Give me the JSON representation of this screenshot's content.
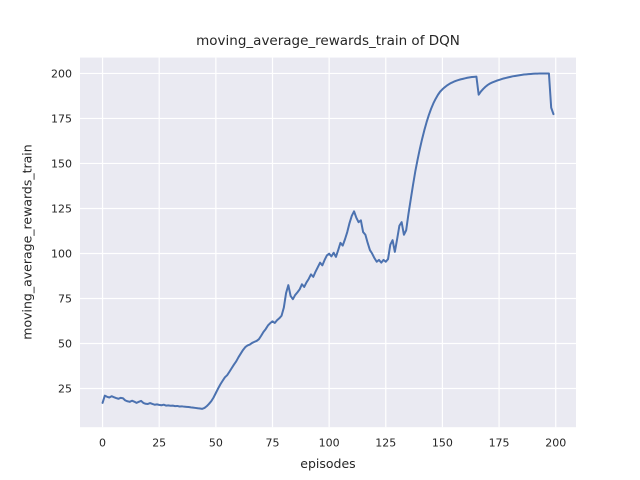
{
  "style": {
    "figure_bg": "#ffffff",
    "axes_bg": "#eaeaf2",
    "grid_color": "#ffffff",
    "text_color": "#262626",
    "accent": "#4c72b0"
  },
  "chart_data": {
    "type": "line",
    "title": "moving_average_rewards_train of DQN",
    "xlabel": "episodes",
    "ylabel": "moving_average_rewards_train",
    "x_ticks": [
      0,
      25,
      50,
      75,
      100,
      125,
      150,
      175,
      200
    ],
    "y_ticks": [
      25,
      50,
      75,
      100,
      125,
      150,
      175,
      200
    ],
    "xlim": [
      -9.95,
      208.95
    ],
    "ylim": [
      3.5,
      208.8
    ],
    "grid": true,
    "legend_position": "none",
    "series": [
      {
        "name": "moving_average_rewards_train",
        "color": "#4c72b0",
        "points": [
          [
            0,
            17
          ],
          [
            1,
            21
          ],
          [
            2,
            20.4
          ],
          [
            3,
            20
          ],
          [
            4,
            20.7
          ],
          [
            5,
            20.2
          ],
          [
            6,
            19.7
          ],
          [
            7,
            19.3
          ],
          [
            8,
            19.8
          ],
          [
            9,
            19.6
          ],
          [
            10,
            18.4
          ],
          [
            11,
            17.9
          ],
          [
            12,
            17.6
          ],
          [
            13,
            18.2
          ],
          [
            14,
            17.7
          ],
          [
            15,
            17
          ],
          [
            16,
            17.6
          ],
          [
            17,
            18.1
          ],
          [
            18,
            17
          ],
          [
            19,
            16.5
          ],
          [
            20,
            16.4
          ],
          [
            21,
            16.9
          ],
          [
            22,
            16.4
          ],
          [
            23,
            16
          ],
          [
            24,
            16.2
          ],
          [
            25,
            15.9
          ],
          [
            26,
            15.7
          ],
          [
            27,
            16
          ],
          [
            28,
            15.5
          ],
          [
            29,
            15.6
          ],
          [
            30,
            15.4
          ],
          [
            31,
            15.5
          ],
          [
            32,
            15.2
          ],
          [
            33,
            15.3
          ],
          [
            34,
            15
          ],
          [
            35,
            15.1
          ],
          [
            36,
            14.9
          ],
          [
            37,
            14.8
          ],
          [
            38,
            14.7
          ],
          [
            39,
            14.5
          ],
          [
            40,
            14.4
          ],
          [
            41,
            14.2
          ],
          [
            42,
            14
          ],
          [
            43,
            13.9
          ],
          [
            44,
            13.7
          ],
          [
            45,
            14.2
          ],
          [
            46,
            15.2
          ],
          [
            47,
            16.5
          ],
          [
            48,
            18
          ],
          [
            49,
            20
          ],
          [
            50,
            22.5
          ],
          [
            51,
            25
          ],
          [
            52,
            27.3
          ],
          [
            53,
            29.3
          ],
          [
            54,
            31.2
          ],
          [
            55,
            32.4
          ],
          [
            56,
            34.3
          ],
          [
            57,
            36.3
          ],
          [
            58,
            38.3
          ],
          [
            59,
            40.1
          ],
          [
            60,
            42.4
          ],
          [
            61,
            44.4
          ],
          [
            62,
            46.4
          ],
          [
            63,
            48
          ],
          [
            64,
            48.9
          ],
          [
            65,
            49.4
          ],
          [
            66,
            50.3
          ],
          [
            67,
            50.9
          ],
          [
            68,
            51.4
          ],
          [
            69,
            52.4
          ],
          [
            70,
            54.3
          ],
          [
            71,
            56.4
          ],
          [
            72,
            58
          ],
          [
            73,
            60
          ],
          [
            74,
            61.3
          ],
          [
            75,
            62.3
          ],
          [
            76,
            61.4
          ],
          [
            77,
            62.9
          ],
          [
            78,
            64
          ],
          [
            79,
            65.4
          ],
          [
            80,
            69.9
          ],
          [
            81,
            78
          ],
          [
            82,
            82.4
          ],
          [
            83,
            76.4
          ],
          [
            84,
            74.6
          ],
          [
            85,
            76.9
          ],
          [
            86,
            78.4
          ],
          [
            87,
            80.1
          ],
          [
            88,
            82.9
          ],
          [
            89,
            81.4
          ],
          [
            90,
            83.9
          ],
          [
            91,
            85.9
          ],
          [
            92,
            88.4
          ],
          [
            93,
            87
          ],
          [
            94,
            89.9
          ],
          [
            95,
            92.4
          ],
          [
            96,
            94.9
          ],
          [
            97,
            93.4
          ],
          [
            98,
            96.4
          ],
          [
            99,
            98.9
          ],
          [
            100,
            99.9
          ],
          [
            101,
            98.4
          ],
          [
            102,
            100.4
          ],
          [
            103,
            98.1
          ],
          [
            104,
            101.9
          ],
          [
            105,
            105.9
          ],
          [
            106,
            104.4
          ],
          [
            107,
            107.9
          ],
          [
            108,
            111.9
          ],
          [
            109,
            116.9
          ],
          [
            110,
            120.9
          ],
          [
            111,
            123.4
          ],
          [
            112,
            119.9
          ],
          [
            113,
            117.4
          ],
          [
            114,
            118.4
          ],
          [
            115,
            111.9
          ],
          [
            116,
            110.4
          ],
          [
            117,
            105.9
          ],
          [
            118,
            101.9
          ],
          [
            119,
            99.9
          ],
          [
            120,
            97.4
          ],
          [
            121,
            95.4
          ],
          [
            122,
            96.4
          ],
          [
            123,
            94.9
          ],
          [
            124,
            96.4
          ],
          [
            125,
            95.4
          ],
          [
            126,
            96.9
          ],
          [
            127,
            104.9
          ],
          [
            128,
            107.4
          ],
          [
            129,
            100.9
          ],
          [
            130,
            107.9
          ],
          [
            131,
            115.4
          ],
          [
            132,
            117.4
          ],
          [
            133,
            110.4
          ],
          [
            134,
            112.9
          ],
          [
            135,
            121.9
          ],
          [
            136,
            129.9
          ],
          [
            137,
            137.9
          ],
          [
            138,
            145.4
          ],
          [
            139,
            151.9
          ],
          [
            140,
            157.9
          ],
          [
            141,
            163.4
          ],
          [
            142,
            168.4
          ],
          [
            143,
            172.9
          ],
          [
            144,
            176.9
          ],
          [
            145,
            180.4
          ],
          [
            146,
            183.4
          ],
          [
            147,
            185.9
          ],
          [
            148,
            188.1
          ],
          [
            149,
            189.9
          ],
          [
            150,
            191.2
          ],
          [
            151,
            192.3
          ],
          [
            152,
            193.3
          ],
          [
            153,
            194.1
          ],
          [
            154,
            194.8
          ],
          [
            155,
            195.4
          ],
          [
            156,
            195.9
          ],
          [
            157,
            196.3
          ],
          [
            158,
            196.7
          ],
          [
            159,
            197
          ],
          [
            160,
            197.3
          ],
          [
            161,
            197.6
          ],
          [
            162,
            197.8
          ],
          [
            163,
            198
          ],
          [
            164,
            198.1
          ],
          [
            165,
            198.2
          ],
          [
            166,
            188.2
          ],
          [
            167,
            190
          ],
          [
            168,
            191.4
          ],
          [
            169,
            192.6
          ],
          [
            170,
            193.6
          ],
          [
            171,
            194.4
          ],
          [
            172,
            195
          ],
          [
            173,
            195.5
          ],
          [
            174,
            196
          ],
          [
            175,
            196.4
          ],
          [
            176,
            196.8
          ],
          [
            177,
            197.2
          ],
          [
            178,
            197.5
          ],
          [
            179,
            197.8
          ],
          [
            180,
            198.1
          ],
          [
            181,
            198.4
          ],
          [
            182,
            198.6
          ],
          [
            183,
            198.8
          ],
          [
            184,
            199
          ],
          [
            185,
            199.2
          ],
          [
            186,
            199.4
          ],
          [
            187,
            199.5
          ],
          [
            188,
            199.6
          ],
          [
            189,
            199.7
          ],
          [
            190,
            199.8
          ],
          [
            191,
            199.9
          ],
          [
            192,
            199.9
          ],
          [
            193,
            200
          ],
          [
            194,
            200
          ],
          [
            195,
            200
          ],
          [
            196,
            200
          ],
          [
            197,
            200
          ],
          [
            198,
            181
          ],
          [
            199,
            177.4
          ]
        ]
      }
    ]
  }
}
